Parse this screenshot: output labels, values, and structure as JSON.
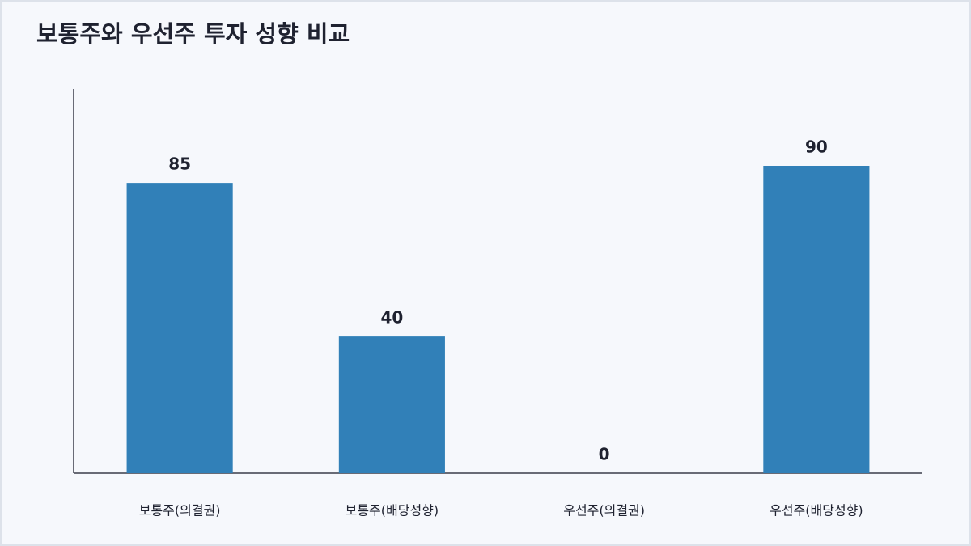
{
  "chart_data": {
    "type": "bar",
    "title": "보통주와 우선주 투자 성향 비교",
    "categories": [
      "보통주(의결권)",
      "보통주(배당성향)",
      "우선주(의결권)",
      "우선주(배당성향)"
    ],
    "values": [
      85,
      40,
      0,
      90
    ],
    "color": "#3180b8",
    "ylim": [
      0,
      112.5
    ],
    "grid": false
  }
}
